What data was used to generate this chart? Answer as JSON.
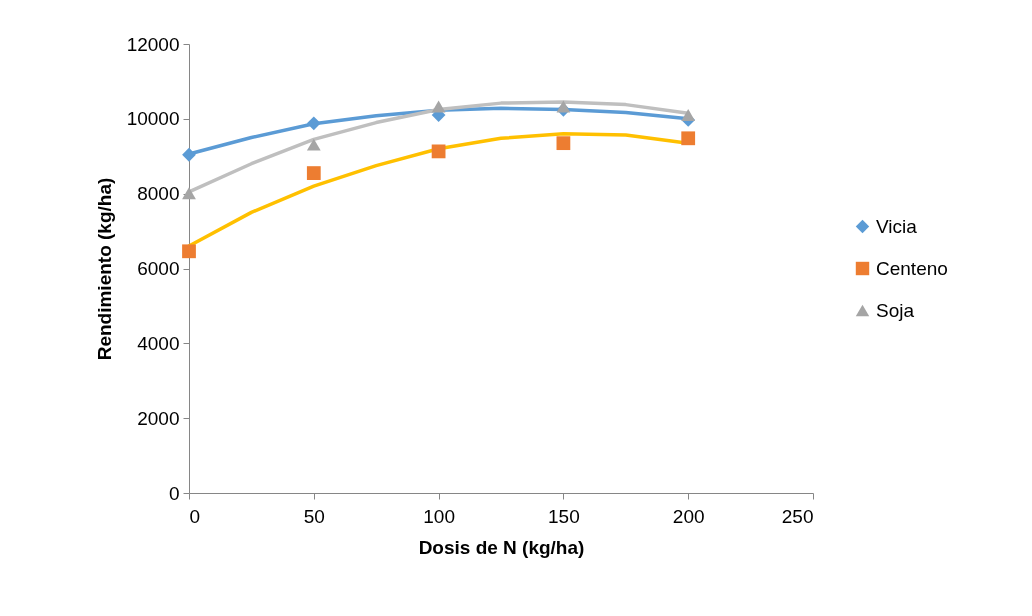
{
  "chart_data": {
    "type": "scatter",
    "xlabel": "Dosis de N (kg/ha)",
    "ylabel": "Rendimiento (kg/ha)",
    "x": [
      0,
      50,
      100,
      150,
      200
    ],
    "xlim": [
      0,
      250
    ],
    "xticks": [
      0,
      50,
      100,
      150,
      200,
      250
    ],
    "ylim": [
      0,
      12000
    ],
    "yticks": [
      0,
      2000,
      4000,
      6000,
      8000,
      10000,
      12000
    ],
    "grid": false,
    "legend": "right",
    "series": [
      {
        "name": "Vicia",
        "color": "#5b9bd5",
        "marker": "diamond",
        "values": [
          9040,
          9880,
          10100,
          10240,
          9970
        ]
      },
      {
        "name": "Centeno",
        "color": "#ed7d31",
        "marker": "square",
        "values": [
          6460,
          8550,
          9130,
          9350,
          9480
        ]
      },
      {
        "name": "Soja",
        "color": "#a5a5a5",
        "marker": "triangle",
        "values": [
          8010,
          9310,
          10330,
          10330,
          10100
        ]
      },
      {
        "type": "line",
        "color": "#5b9bd5",
        "x": [
          0,
          25,
          50,
          75,
          100,
          125,
          150,
          175,
          200
        ],
        "values": [
          9060,
          9500,
          9870,
          10080,
          10230,
          10280,
          10250,
          10170,
          10000
        ]
      },
      {
        "type": "line",
        "color": "#ffc000",
        "x": [
          0,
          25,
          50,
          75,
          100,
          125,
          150,
          175,
          200
        ],
        "values": [
          6600,
          7500,
          8200,
          8750,
          9200,
          9480,
          9600,
          9570,
          9350
        ]
      },
      {
        "type": "line",
        "color": "#bfbfbf",
        "x": [
          0,
          25,
          50,
          75,
          100,
          125,
          150,
          175,
          200
        ],
        "values": [
          8050,
          8800,
          9450,
          9900,
          10250,
          10420,
          10450,
          10380,
          10150
        ]
      }
    ]
  }
}
